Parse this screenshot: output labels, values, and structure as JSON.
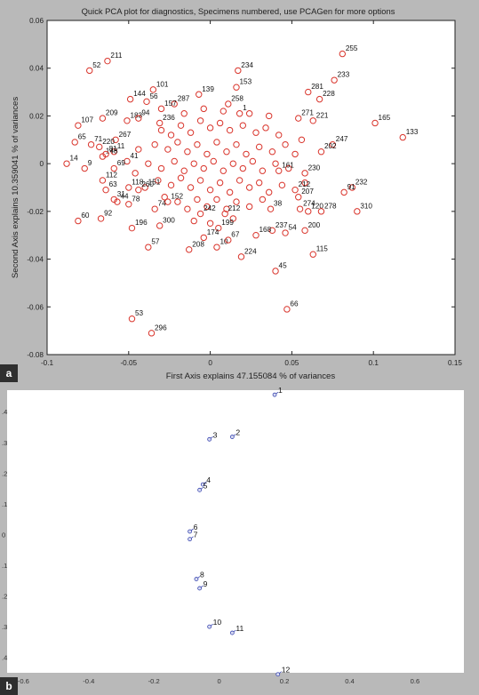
{
  "panel_labels": [
    "a",
    "b"
  ],
  "chart_data": [
    {
      "type": "scatter",
      "title": "Quick PCA plot for diagnostics, Specimens numbered, use PCAGen for more options",
      "xlabel": "First Axis explains 47.155084 % of variances",
      "ylabel": "Second Axis explains 10.359041 % of variances",
      "xlim": [
        -0.1,
        0.15
      ],
      "ylim": [
        -0.08,
        0.06
      ],
      "xticks": [
        -0.1,
        -0.05,
        0,
        0.05,
        0.1,
        0.15
      ],
      "yticks": [
        0.06,
        0.04,
        0.02,
        0,
        -0.02,
        -0.04,
        -0.06,
        -0.08
      ],
      "xtick_labels": [
        "-0.1",
        "-0.05",
        "0",
        "0.05",
        "0.1",
        "0.15"
      ],
      "ytick_labels": [
        "0.06",
        "0.04",
        "0.02",
        "0",
        "-0.02",
        "-0.04",
        "-0.06",
        "-0.08"
      ],
      "marker_color": "#d9342b",
      "points": [
        {
          "label": "255",
          "x": 0.081,
          "y": 0.046
        },
        {
          "label": "234",
          "x": 0.017,
          "y": 0.039
        },
        {
          "label": "233",
          "x": 0.076,
          "y": 0.035
        },
        {
          "label": "211",
          "x": -0.063,
          "y": 0.043
        },
        {
          "label": "52",
          "x": -0.074,
          "y": 0.039
        },
        {
          "label": "101",
          "x": -0.035,
          "y": 0.031
        },
        {
          "label": "153",
          "x": 0.016,
          "y": 0.032
        },
        {
          "label": "281",
          "x": 0.06,
          "y": 0.03
        },
        {
          "label": "228",
          "x": 0.067,
          "y": 0.027
        },
        {
          "label": "139",
          "x": -0.007,
          "y": 0.029
        },
        {
          "label": "144",
          "x": -0.049,
          "y": 0.027
        },
        {
          "label": "56",
          "x": -0.039,
          "y": 0.026
        },
        {
          "label": "258",
          "x": 0.011,
          "y": 0.025
        },
        {
          "label": "287",
          "x": -0.022,
          "y": 0.025
        },
        {
          "label": "157",
          "x": -0.03,
          "y": 0.023
        },
        {
          "label": "209",
          "x": -0.066,
          "y": 0.019
        },
        {
          "label": "107",
          "x": -0.081,
          "y": 0.016
        },
        {
          "label": "183",
          "x": -0.051,
          "y": 0.018
        },
        {
          "label": "94",
          "x": -0.044,
          "y": 0.019
        },
        {
          "label": "236",
          "x": -0.031,
          "y": 0.017
        },
        {
          "label": "165",
          "x": 0.101,
          "y": 0.017
        },
        {
          "label": "221",
          "x": 0.063,
          "y": 0.018
        },
        {
          "label": "271",
          "x": 0.054,
          "y": 0.019
        },
        {
          "label": "133",
          "x": 0.118,
          "y": 0.011
        },
        {
          "label": "65",
          "x": -0.083,
          "y": 0.009
        },
        {
          "label": "71",
          "x": -0.073,
          "y": 0.008
        },
        {
          "label": "267",
          "x": -0.058,
          "y": 0.01
        },
        {
          "label": "220",
          "x": -0.068,
          "y": 0.007
        },
        {
          "label": "11",
          "x": -0.059,
          "y": 0.005
        },
        {
          "label": "148",
          "x": -0.066,
          "y": 0.003
        },
        {
          "label": "14",
          "x": -0.088,
          "y": 0.0
        },
        {
          "label": "9",
          "x": -0.077,
          "y": -0.002
        },
        {
          "label": "247",
          "x": 0.075,
          "y": 0.008
        },
        {
          "label": "202",
          "x": 0.068,
          "y": 0.005
        },
        {
          "label": "230",
          "x": 0.058,
          "y": -0.004
        },
        {
          "label": "232",
          "x": 0.087,
          "y": -0.01
        },
        {
          "label": "91",
          "x": 0.082,
          "y": -0.012
        },
        {
          "label": "112",
          "x": -0.066,
          "y": -0.007
        },
        {
          "label": "63",
          "x": -0.064,
          "y": -0.011
        },
        {
          "label": "31",
          "x": -0.059,
          "y": -0.015
        },
        {
          "label": "44",
          "x": -0.057,
          "y": -0.016
        },
        {
          "label": "78",
          "x": -0.05,
          "y": -0.017
        },
        {
          "label": "74",
          "x": -0.034,
          "y": -0.019
        },
        {
          "label": "60",
          "x": -0.081,
          "y": -0.024
        },
        {
          "label": "92",
          "x": -0.067,
          "y": -0.023
        },
        {
          "label": "196",
          "x": -0.048,
          "y": -0.027
        },
        {
          "label": "300",
          "x": -0.031,
          "y": -0.026
        },
        {
          "label": "57",
          "x": -0.038,
          "y": -0.035
        },
        {
          "label": "208",
          "x": -0.013,
          "y": -0.036
        },
        {
          "label": "10",
          "x": 0.004,
          "y": -0.035
        },
        {
          "label": "67",
          "x": 0.011,
          "y": -0.032
        },
        {
          "label": "224",
          "x": 0.019,
          "y": -0.039
        },
        {
          "label": "237",
          "x": 0.038,
          "y": -0.028
        },
        {
          "label": "54",
          "x": 0.046,
          "y": -0.029
        },
        {
          "label": "168",
          "x": 0.028,
          "y": -0.03
        },
        {
          "label": "274",
          "x": 0.055,
          "y": -0.019
        },
        {
          "label": "120",
          "x": 0.06,
          "y": -0.02
        },
        {
          "label": "278",
          "x": 0.068,
          "y": -0.02
        },
        {
          "label": "310",
          "x": 0.09,
          "y": -0.02
        },
        {
          "label": "200",
          "x": 0.058,
          "y": -0.028
        },
        {
          "label": "115",
          "x": 0.063,
          "y": -0.038
        },
        {
          "label": "45",
          "x": 0.04,
          "y": -0.045
        },
        {
          "label": "66",
          "x": 0.047,
          "y": -0.061
        },
        {
          "label": "53",
          "x": -0.048,
          "y": -0.065
        },
        {
          "label": "296",
          "x": -0.036,
          "y": -0.071
        },
        {
          "label": "212",
          "x": 0.052,
          "y": -0.011
        },
        {
          "label": "207",
          "x": 0.054,
          "y": -0.014
        },
        {
          "label": "38",
          "x": 0.037,
          "y": -0.019
        },
        {
          "label": "161",
          "x": 0.042,
          "y": -0.003
        },
        {
          "label": "1",
          "x": 0.018,
          "y": 0.021
        },
        {
          "label": "199",
          "x": 0.005,
          "y": -0.027
        },
        {
          "label": "212",
          "x": 0.009,
          "y": -0.021
        },
        {
          "label": "242",
          "x": -0.006,
          "y": -0.021
        },
        {
          "label": "174",
          "x": -0.004,
          "y": -0.031
        },
        {
          "label": "152",
          "x": -0.026,
          "y": -0.016
        },
        {
          "label": "151",
          "x": -0.04,
          "y": -0.01
        },
        {
          "label": "118",
          "x": -0.05,
          "y": -0.01
        },
        {
          "label": "260",
          "x": -0.044,
          "y": -0.011
        },
        {
          "label": "41",
          "x": -0.051,
          "y": 0.001
        },
        {
          "label": "69",
          "x": -0.059,
          "y": -0.002
        },
        {
          "label": "81",
          "x": -0.064,
          "y": 0.004
        }
      ],
      "cluster_points": [
        {
          "x": -0.03,
          "y": 0.014
        },
        {
          "x": -0.024,
          "y": 0.012
        },
        {
          "x": -0.018,
          "y": 0.016
        },
        {
          "x": -0.012,
          "y": 0.013
        },
        {
          "x": -0.006,
          "y": 0.018
        },
        {
          "x": 0.0,
          "y": 0.015
        },
        {
          "x": 0.006,
          "y": 0.017
        },
        {
          "x": 0.012,
          "y": 0.014
        },
        {
          "x": 0.02,
          "y": 0.016
        },
        {
          "x": 0.028,
          "y": 0.013
        },
        {
          "x": 0.034,
          "y": 0.015
        },
        {
          "x": 0.042,
          "y": 0.012
        },
        {
          "x": -0.034,
          "y": 0.008
        },
        {
          "x": -0.026,
          "y": 0.006
        },
        {
          "x": -0.02,
          "y": 0.009
        },
        {
          "x": -0.014,
          "y": 0.005
        },
        {
          "x": -0.008,
          "y": 0.008
        },
        {
          "x": -0.002,
          "y": 0.004
        },
        {
          "x": 0.004,
          "y": 0.009
        },
        {
          "x": 0.01,
          "y": 0.005
        },
        {
          "x": 0.016,
          "y": 0.008
        },
        {
          "x": 0.022,
          "y": 0.004
        },
        {
          "x": 0.03,
          "y": 0.007
        },
        {
          "x": 0.038,
          "y": 0.005
        },
        {
          "x": 0.046,
          "y": 0.008
        },
        {
          "x": 0.052,
          "y": 0.004
        },
        {
          "x": -0.038,
          "y": 0.0
        },
        {
          "x": -0.03,
          "y": -0.002
        },
        {
          "x": -0.022,
          "y": 0.001
        },
        {
          "x": -0.016,
          "y": -0.003
        },
        {
          "x": -0.01,
          "y": 0.0
        },
        {
          "x": -0.004,
          "y": -0.002
        },
        {
          "x": 0.002,
          "y": 0.001
        },
        {
          "x": 0.008,
          "y": -0.003
        },
        {
          "x": 0.014,
          "y": 0.0
        },
        {
          "x": 0.02,
          "y": -0.002
        },
        {
          "x": 0.026,
          "y": 0.001
        },
        {
          "x": 0.032,
          "y": -0.003
        },
        {
          "x": 0.04,
          "y": 0.0
        },
        {
          "x": 0.048,
          "y": -0.002
        },
        {
          "x": -0.032,
          "y": -0.007
        },
        {
          "x": -0.024,
          "y": -0.009
        },
        {
          "x": -0.018,
          "y": -0.006
        },
        {
          "x": -0.012,
          "y": -0.01
        },
        {
          "x": -0.006,
          "y": -0.007
        },
        {
          "x": 0.0,
          "y": -0.011
        },
        {
          "x": 0.006,
          "y": -0.008
        },
        {
          "x": 0.012,
          "y": -0.012
        },
        {
          "x": 0.018,
          "y": -0.007
        },
        {
          "x": 0.024,
          "y": -0.01
        },
        {
          "x": 0.03,
          "y": -0.008
        },
        {
          "x": 0.036,
          "y": -0.012
        },
        {
          "x": 0.044,
          "y": -0.009
        },
        {
          "x": -0.028,
          "y": -0.014
        },
        {
          "x": -0.02,
          "y": -0.016
        },
        {
          "x": -0.014,
          "y": -0.019
        },
        {
          "x": -0.008,
          "y": -0.015
        },
        {
          "x": -0.002,
          "y": -0.018
        },
        {
          "x": 0.004,
          "y": -0.015
        },
        {
          "x": 0.01,
          "y": -0.019
        },
        {
          "x": 0.016,
          "y": -0.016
        },
        {
          "x": 0.024,
          "y": -0.018
        },
        {
          "x": 0.032,
          "y": -0.015
        },
        {
          "x": -0.016,
          "y": 0.021
        },
        {
          "x": -0.004,
          "y": 0.023
        },
        {
          "x": 0.008,
          "y": 0.022
        },
        {
          "x": 0.024,
          "y": 0.021
        },
        {
          "x": 0.036,
          "y": 0.02
        },
        {
          "x": -0.044,
          "y": 0.006
        },
        {
          "x": -0.046,
          "y": -0.004
        },
        {
          "x": 0.056,
          "y": 0.01
        },
        {
          "x": 0.058,
          "y": -0.008
        },
        {
          "x": -0.01,
          "y": -0.024
        },
        {
          "x": 0.0,
          "y": -0.025
        },
        {
          "x": 0.014,
          "y": -0.023
        }
      ]
    },
    {
      "type": "scatter",
      "xlim": [
        -0.65,
        0.75
      ],
      "ylim": [
        -0.45,
        0.47
      ],
      "xticks": [
        -0.6,
        -0.4,
        -0.2,
        0,
        0.2,
        0.4,
        0.6
      ],
      "yticks": [
        0.4,
        0.3,
        0.2,
        0.1,
        0,
        -0.1,
        -0.2,
        -0.3,
        -0.4
      ],
      "xtick_labels": [
        "-0.6",
        "-0.4",
        "-0.2",
        "0",
        "0.2",
        "0.4",
        "0.6"
      ],
      "ytick_labels": [
        ".4",
        ".3",
        ".2",
        ".1",
        "0",
        ".1",
        ".2",
        ".3",
        ".4"
      ],
      "marker_color": "#3a47b0",
      "points": [
        {
          "label": "1",
          "x": 0.17,
          "y": 0.455
        },
        {
          "label": "2",
          "x": 0.04,
          "y": 0.318
        },
        {
          "label": "3",
          "x": -0.03,
          "y": 0.31
        },
        {
          "label": "4",
          "x": -0.05,
          "y": 0.163
        },
        {
          "label": "5",
          "x": -0.06,
          "y": 0.145
        },
        {
          "label": "6",
          "x": -0.09,
          "y": 0.01
        },
        {
          "label": "7",
          "x": -0.09,
          "y": -0.015
        },
        {
          "label": "8",
          "x": -0.07,
          "y": -0.145
        },
        {
          "label": "9",
          "x": -0.06,
          "y": -0.175
        },
        {
          "label": "10",
          "x": -0.03,
          "y": -0.3
        },
        {
          "label": "11",
          "x": 0.04,
          "y": -0.32
        },
        {
          "label": "12",
          "x": 0.18,
          "y": -0.455
        }
      ]
    }
  ]
}
